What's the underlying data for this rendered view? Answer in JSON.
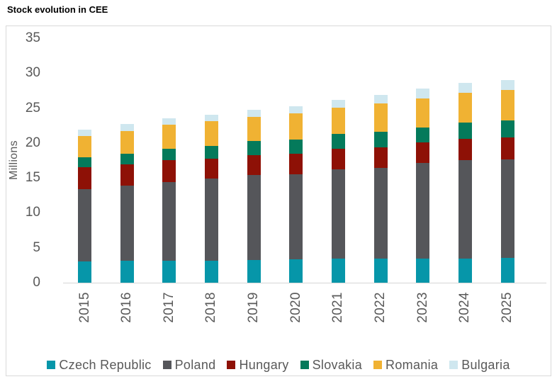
{
  "title": "Stock evolution in CEE",
  "chart_data": {
    "type": "bar",
    "stacked": true,
    "title": "Stock evolution in CEE",
    "ylabel": "Millions",
    "xlabel": "",
    "ylim": [
      0,
      35
    ],
    "yticks": [
      0,
      5,
      10,
      15,
      20,
      25,
      30,
      35
    ],
    "grid": false,
    "legend_position": "bottom",
    "x": [
      "2015",
      "2016",
      "2017",
      "2018",
      "2019",
      "2020",
      "2021",
      "2022",
      "2023",
      "2024",
      "2025"
    ],
    "series": [
      {
        "name": "Czech Republic",
        "color": "#0696a9",
        "values": [
          3.0,
          3.1,
          3.2,
          3.2,
          3.3,
          3.4,
          3.5,
          3.5,
          3.5,
          3.5,
          3.6
        ]
      },
      {
        "name": "Poland",
        "color": "#55565a",
        "values": [
          10.4,
          10.8,
          11.2,
          11.7,
          12.1,
          12.1,
          12.7,
          12.9,
          13.6,
          14.1,
          14.1
        ]
      },
      {
        "name": "Hungary",
        "color": "#8e1106",
        "values": [
          3.1,
          3.0,
          3.2,
          2.9,
          2.9,
          3.0,
          3.0,
          3.0,
          3.0,
          3.0,
          3.1
        ]
      },
      {
        "name": "Slovakia",
        "color": "#047a5b",
        "values": [
          1.5,
          1.6,
          1.6,
          1.8,
          2.0,
          2.0,
          2.1,
          2.2,
          2.1,
          2.3,
          2.4
        ]
      },
      {
        "name": "Romania",
        "color": "#f0b233",
        "values": [
          3.0,
          3.2,
          3.4,
          3.5,
          3.4,
          3.7,
          3.8,
          4.1,
          4.2,
          4.3,
          4.4
        ]
      },
      {
        "name": "Bulgaria",
        "color": "#cfe7ef",
        "values": [
          0.9,
          1.0,
          0.9,
          1.0,
          1.1,
          1.1,
          1.1,
          1.2,
          1.4,
          1.4,
          1.4
        ]
      }
    ],
    "totals": [
      21.9,
      22.7,
      23.5,
      24.1,
      24.8,
      25.3,
      26.2,
      26.9,
      27.8,
      28.6,
      29.0
    ]
  }
}
